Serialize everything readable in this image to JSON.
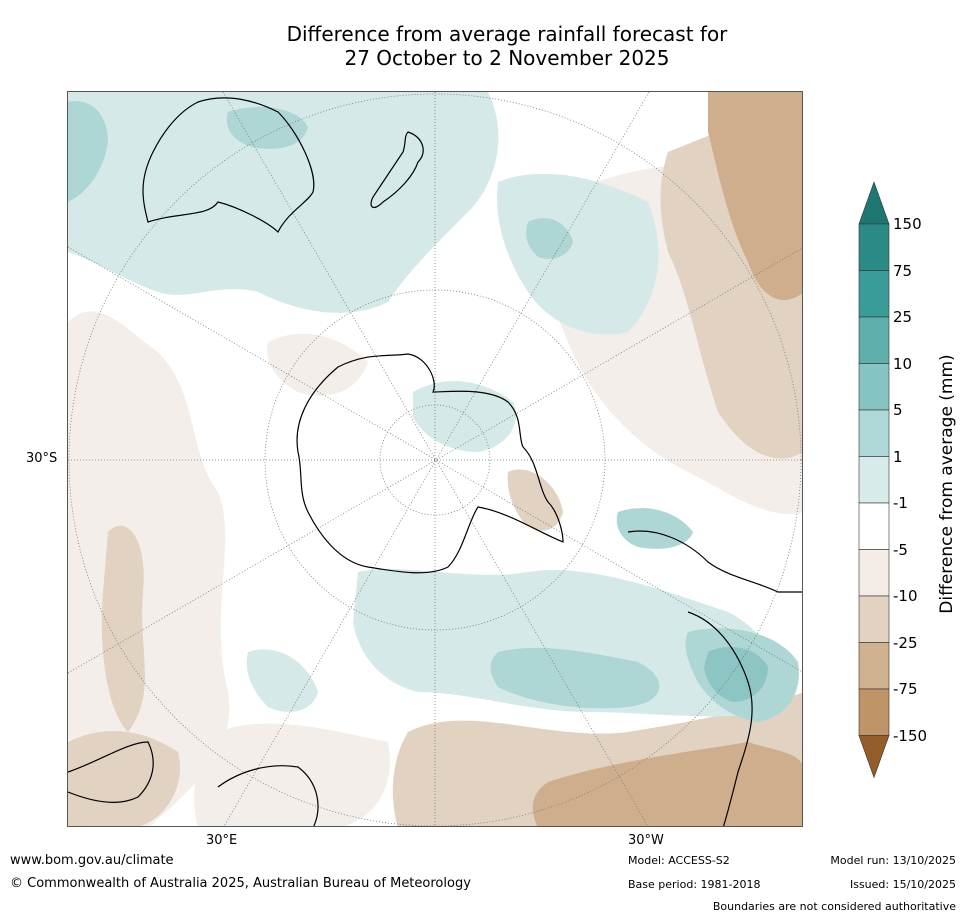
{
  "title": {
    "line1": "Difference from average rainfall forecast for",
    "line2": "27 October to 2 November 2025"
  },
  "map": {
    "projection": "south polar stereographic",
    "lat_label": "30°S",
    "lon_labels": [
      "30°E",
      "30°W"
    ],
    "features": [
      "antarctica",
      "australia",
      "new-zealand",
      "south-america",
      "southern-africa"
    ],
    "colors": {
      "wet_light": "#d5e9e8",
      "wet_mid": "#aed6d5",
      "wet_dark": "#8cc5c4",
      "dry_light": "#f4eeea",
      "dry_mid": "#e2d2c2",
      "dry_dark": "#cfae8e",
      "coast": "#000000"
    }
  },
  "colorbar": {
    "label": "Difference from average (mm)",
    "ticks": [
      "150",
      "75",
      "25",
      "10",
      "5",
      "1",
      "-1",
      "-5",
      "-10",
      "-25",
      "-75",
      "-150"
    ],
    "colors": [
      "#2c8a86",
      "#3a9c98",
      "#5eaeab",
      "#85c4c2",
      "#afd9d8",
      "#d7ebeb",
      "#ffffff",
      "#f4ede7",
      "#e3d2c1",
      "#d0b290",
      "#bf9466",
      "#ad7843",
      "#955d2a",
      "#1f7773"
    ]
  },
  "footer": {
    "url": "www.bom.gov.au/climate",
    "copyright": "© Commonwealth of Australia 2025, Australian Bureau of Meteorology",
    "model": "Model: ACCESS-S2",
    "base_period": "Base period: 1981-2018",
    "model_run": "Model run: 13/10/2025",
    "issued": "Issued: 15/10/2025",
    "disclaimer": "Boundaries are not considered authoritative"
  }
}
